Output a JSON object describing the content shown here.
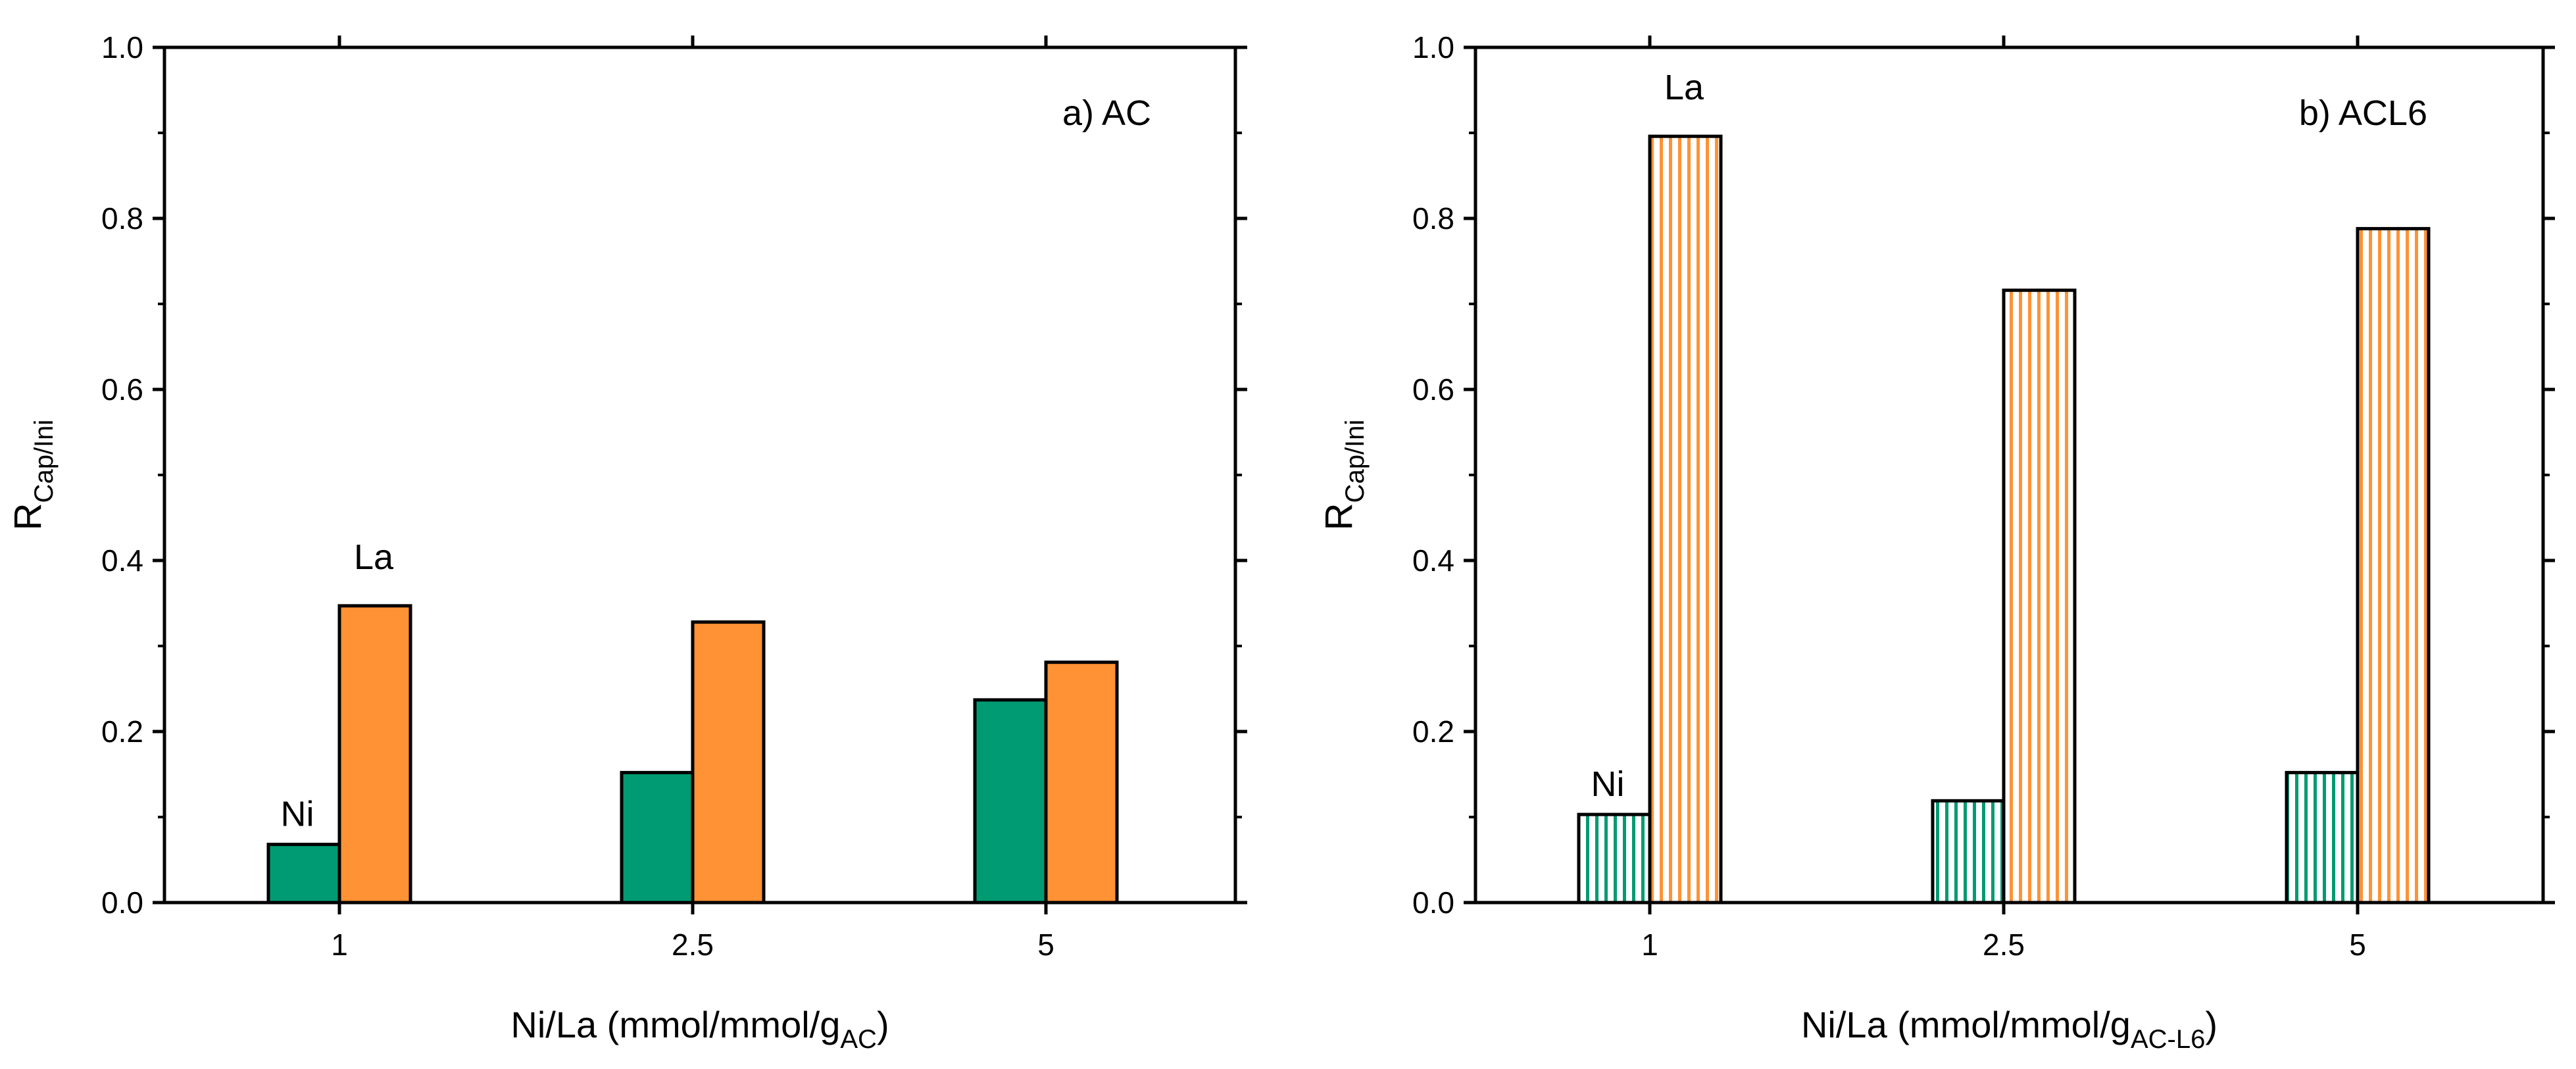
{
  "chart_data": [
    {
      "type": "bar",
      "panel_label": "a) AC",
      "categories": [
        "1",
        "2.5",
        "5"
      ],
      "series": [
        {
          "name": "Ni",
          "values": [
            0.068,
            0.152,
            0.237
          ],
          "color": "#009b72",
          "pattern": "solid"
        },
        {
          "name": "La",
          "values": [
            0.347,
            0.328,
            0.281
          ],
          "color": "#ff9234",
          "pattern": "solid"
        }
      ],
      "ylabel": {
        "main": "R",
        "sub": "Cap/Ini"
      },
      "xlabel": {
        "main": "Ni/La (mmol/mmol/g",
        "sub": "AC",
        "end": ")"
      },
      "ylim": [
        0,
        1.0
      ],
      "yticks": [
        "0.0",
        "0.2",
        "0.4",
        "0.6",
        "0.8",
        "1.0"
      ],
      "annotations": [
        "Ni",
        "La"
      ],
      "grid": false,
      "legend": "none"
    },
    {
      "type": "bar",
      "panel_label": "b) ACL6",
      "categories": [
        "1",
        "2.5",
        "5"
      ],
      "series": [
        {
          "name": "Ni",
          "values": [
            0.103,
            0.119,
            0.152
          ],
          "color": "#009b72",
          "pattern": "vertical-lines"
        },
        {
          "name": "La",
          "values": [
            0.896,
            0.716,
            0.788
          ],
          "color": "#ff9234",
          "pattern": "vertical-lines"
        }
      ],
      "ylabel": {
        "main": "R",
        "sub": "Cap/Ini"
      },
      "xlabel": {
        "main": "Ni/La (mmol/mmol/g",
        "sub": "AC-L6",
        "end": ")"
      },
      "ylim": [
        0,
        1.0
      ],
      "yticks": [
        "0.0",
        "0.2",
        "0.4",
        "0.6",
        "0.8",
        "1.0"
      ],
      "annotations": [
        "Ni",
        "La"
      ],
      "grid": false,
      "legend": "none"
    }
  ]
}
